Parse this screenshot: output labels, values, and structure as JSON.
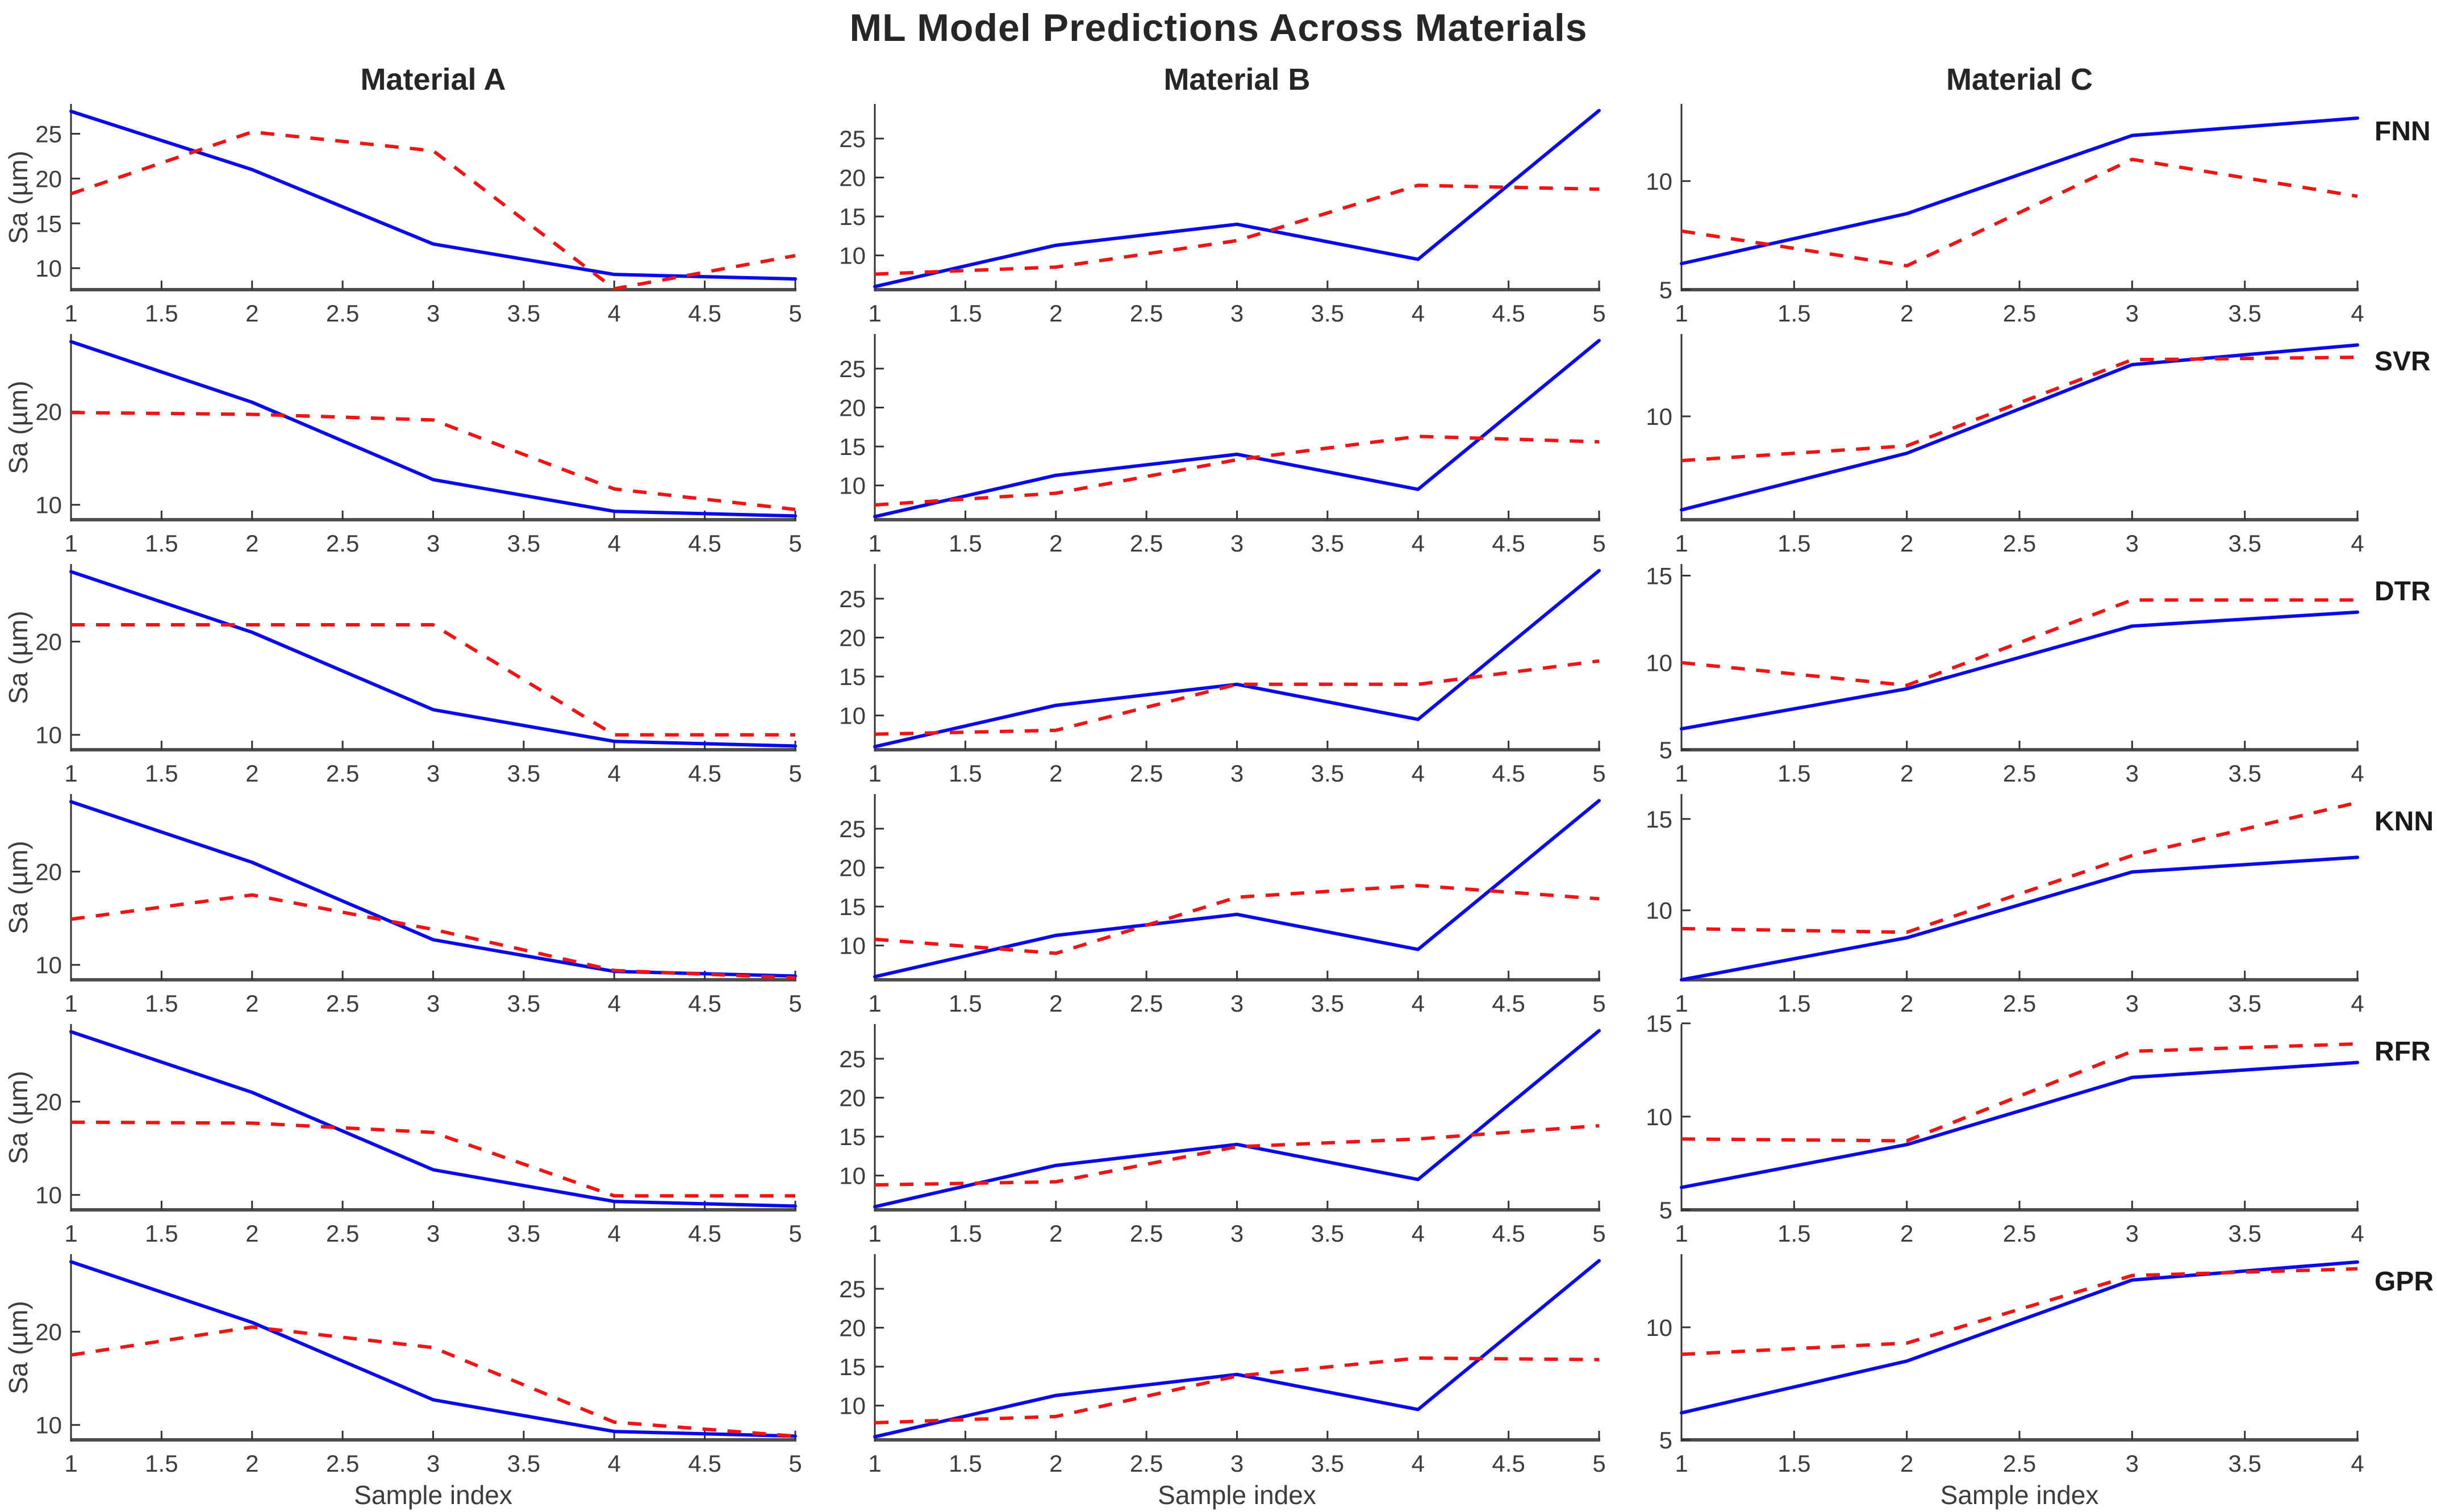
{
  "title": "ML Model Predictions Across Materials",
  "xlabel": "Sample index",
  "ylabel": "Sa (µm)",
  "colors": {
    "actual_line": "#0a0af0",
    "predicted_line": "#f01414",
    "axis": "#4d4d4d",
    "spine_left": "#333333",
    "text": "#3c3c3c",
    "title": "#262626"
  },
  "chart_data": {
    "type": "line",
    "grid": {
      "rows": 6,
      "cols": 3
    },
    "row_labels": [
      "FNN",
      "SVR",
      "DTR",
      "KNN",
      "RFR",
      "GPR"
    ],
    "col_labels": [
      "Material A",
      "Material B",
      "Material C"
    ],
    "legend": {
      "visible": false,
      "series": [
        "actual (solid blue)",
        "model prediction (dashed red)"
      ]
    },
    "materials": [
      {
        "name": "Material A",
        "x": [
          1,
          2,
          3,
          4,
          5
        ],
        "xticks": [
          1,
          1.5,
          2,
          2.5,
          3,
          3.5,
          4,
          4.5,
          5
        ],
        "actual": [
          27.5,
          21.0,
          12.7,
          9.3,
          8.8
        ]
      },
      {
        "name": "Material B",
        "x": [
          1,
          2,
          3,
          4,
          5
        ],
        "xticks": [
          1,
          1.5,
          2,
          2.5,
          3,
          3.5,
          4,
          4.5,
          5
        ],
        "actual": [
          6.0,
          11.3,
          14.0,
          9.5,
          28.6
        ]
      },
      {
        "name": "Material C",
        "x": [
          1,
          2,
          3,
          4
        ],
        "xticks": [
          1,
          1.5,
          2,
          2.5,
          3,
          3.5,
          4
        ],
        "actual": [
          6.2,
          8.5,
          12.1,
          12.9
        ]
      }
    ],
    "predictions": [
      {
        "model": "FNN",
        "values": [
          [
            18.3,
            25.2,
            23.1,
            7.7,
            11.4
          ],
          [
            7.6,
            8.5,
            11.9,
            19.0,
            18.5
          ],
          [
            7.7,
            6.1,
            11.0,
            9.3
          ]
        ]
      },
      {
        "model": "SVR",
        "values": [
          [
            19.9,
            19.7,
            19.1,
            11.7,
            9.5
          ],
          [
            7.5,
            9.0,
            13.3,
            16.3,
            15.6
          ],
          [
            8.2,
            8.8,
            12.3,
            12.4
          ]
        ]
      },
      {
        "model": "DTR",
        "values": [
          [
            21.8,
            21.8,
            21.8,
            10.0,
            10.0
          ],
          [
            7.6,
            8.1,
            14.0,
            14.0,
            17.0
          ],
          [
            10.0,
            8.7,
            13.6,
            13.6
          ]
        ]
      },
      {
        "model": "KNN",
        "values": [
          [
            14.9,
            17.5,
            13.8,
            9.4,
            8.6
          ],
          [
            10.8,
            9.0,
            16.2,
            17.7,
            16.0
          ],
          [
            9.0,
            8.8,
            13.0,
            15.9
          ]
        ]
      },
      {
        "model": "RFR",
        "values": [
          [
            17.8,
            17.7,
            16.7,
            9.9,
            9.9
          ],
          [
            8.8,
            9.2,
            13.7,
            14.7,
            16.4
          ],
          [
            8.8,
            8.7,
            13.5,
            13.9
          ]
        ]
      },
      {
        "model": "GPR",
        "values": [
          [
            17.5,
            20.5,
            18.3,
            10.3,
            8.8
          ],
          [
            7.8,
            8.6,
            13.8,
            16.1,
            15.9
          ],
          [
            8.8,
            9.3,
            12.3,
            12.6
          ]
        ]
      }
    ],
    "axes": [
      [
        {
          "ylim": [
            7.6,
            28.2
          ],
          "yticks": [
            10,
            15,
            20,
            25
          ]
        },
        {
          "ylim": [
            5.6,
            29.3
          ],
          "yticks": [
            10,
            15,
            20,
            25
          ]
        },
        {
          "ylim": [
            5.0,
            13.5
          ],
          "yticks": [
            5,
            10
          ]
        }
      ],
      [
        {
          "ylim": [
            8.4,
            28.2
          ],
          "yticks": [
            10,
            20
          ]
        },
        {
          "ylim": [
            5.6,
            29.3
          ],
          "yticks": [
            10,
            15,
            20,
            25
          ]
        },
        {
          "ylim": [
            5.8,
            13.3
          ],
          "yticks": [
            10
          ]
        }
      ],
      [
        {
          "ylim": [
            8.4,
            28.2
          ],
          "yticks": [
            10,
            20
          ]
        },
        {
          "ylim": [
            5.6,
            29.3
          ],
          "yticks": [
            10,
            15,
            20,
            25
          ]
        },
        {
          "ylim": [
            5.0,
            15.6
          ],
          "yticks": [
            5,
            10,
            15
          ]
        }
      ],
      [
        {
          "ylim": [
            8.4,
            28.2
          ],
          "yticks": [
            10,
            20
          ]
        },
        {
          "ylim": [
            5.6,
            29.3
          ],
          "yticks": [
            10,
            15,
            20,
            25
          ]
        },
        {
          "ylim": [
            6.2,
            16.3
          ],
          "yticks": [
            10,
            15
          ]
        }
      ],
      [
        {
          "ylim": [
            8.4,
            28.2
          ],
          "yticks": [
            10,
            20
          ]
        },
        {
          "ylim": [
            5.6,
            29.3
          ],
          "yticks": [
            10,
            15,
            20,
            25
          ]
        },
        {
          "ylim": [
            5.0,
            14.9
          ],
          "yticks": [
            5,
            10,
            15
          ]
        }
      ],
      [
        {
          "ylim": [
            8.4,
            28.2
          ],
          "yticks": [
            10,
            20
          ]
        },
        {
          "ylim": [
            5.6,
            29.3
          ],
          "yticks": [
            10,
            15,
            20,
            25
          ]
        },
        {
          "ylim": [
            5.0,
            13.2
          ],
          "yticks": [
            5,
            10
          ]
        }
      ]
    ]
  }
}
